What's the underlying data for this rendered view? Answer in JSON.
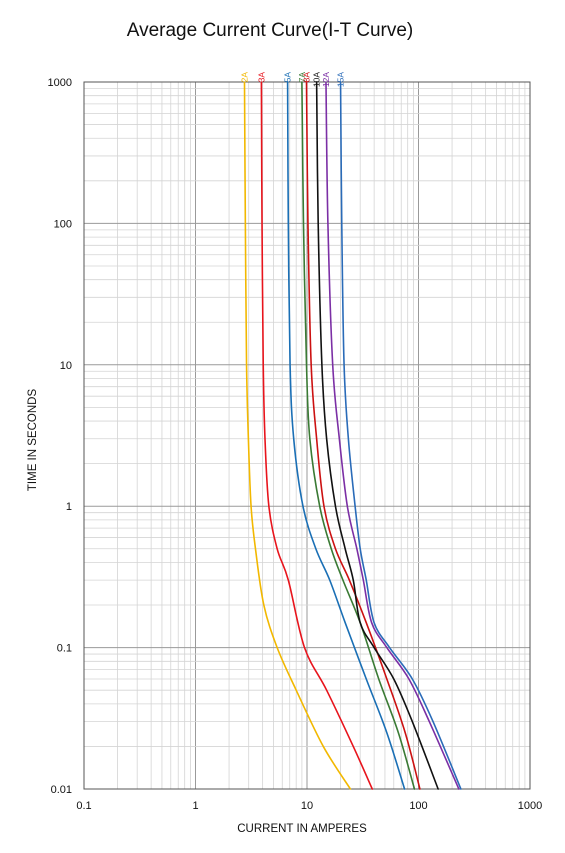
{
  "chart_data": {
    "type": "line",
    "title": "Average Current Curve(I-T Curve)",
    "xlabel": "CURRENT IN AMPERES",
    "ylabel": "TIME IN SECONDS",
    "xscale": "log",
    "yscale": "log",
    "xlim": [
      0.1,
      1000
    ],
    "ylim": [
      0.01,
      1000
    ],
    "grid": true,
    "x_tick_labels": [
      "0.1",
      "1",
      "10",
      "100",
      "1000"
    ],
    "y_tick_labels": [
      "0.01",
      "0.1",
      "1",
      "10",
      "100",
      "1000"
    ],
    "legend_placement": "top, labels above each curve",
    "series": [
      {
        "name": "2A",
        "color": "#f2b800",
        "x": [
          2.75,
          2.8,
          2.87,
          2.98,
          3.15,
          3.45,
          4.1,
          5.4,
          8.0,
          14.0,
          24.5
        ],
        "y": [
          1000,
          100,
          10,
          3,
          1,
          0.5,
          0.2,
          0.1,
          0.05,
          0.02,
          0.01
        ]
      },
      {
        "name": "3A",
        "color": "#e8141c",
        "x": [
          3.9,
          3.95,
          4.05,
          4.2,
          4.55,
          5.4,
          6.8,
          9.5,
          15.0,
          26.0,
          38.5
        ],
        "y": [
          1000,
          100,
          10,
          3,
          1,
          0.5,
          0.3,
          0.1,
          0.05,
          0.02,
          0.01
        ]
      },
      {
        "name": "5A",
        "color": "#1a6fb5",
        "x": [
          6.7,
          6.8,
          7.05,
          7.6,
          9.2,
          12.0,
          16.0,
          22.0,
          34.0,
          52.0,
          75.0
        ],
        "y": [
          1000,
          100,
          10,
          3,
          1,
          0.5,
          0.3,
          0.15,
          0.06,
          0.025,
          0.01
        ]
      },
      {
        "name": "7A",
        "color": "#3a7a34",
        "x": [
          9.0,
          9.3,
          9.9,
          10.6,
          13.0,
          16.5,
          21.0,
          30.0,
          44.0,
          66.0,
          92.0
        ],
        "y": [
          1000,
          100,
          10,
          3,
          1,
          0.5,
          0.3,
          0.15,
          0.06,
          0.025,
          0.01
        ]
      },
      {
        "name": "8A",
        "color": "#cc1111",
        "x": [
          9.9,
          10.2,
          10.9,
          12.2,
          14.2,
          18.0,
          24.0,
          34.0,
          52.0,
          76.0,
          103.0
        ],
        "y": [
          1000,
          100,
          10,
          3,
          1,
          0.5,
          0.3,
          0.15,
          0.06,
          0.025,
          0.01
        ]
      },
      {
        "name": "10A",
        "color": "#111111",
        "x": [
          12.2,
          12.6,
          13.6,
          15.0,
          18.0,
          22.0,
          26.0,
          30.0,
          40.0,
          60.0,
          88.0,
          150.0
        ],
        "y": [
          1000,
          100,
          10,
          3,
          1,
          0.5,
          0.3,
          0.15,
          0.1,
          0.06,
          0.03,
          0.01
        ]
      },
      {
        "name": "12A",
        "color": "#7b2fa5",
        "x": [
          14.8,
          15.4,
          17.0,
          19.5,
          23.0,
          28.0,
          32.0,
          38.0,
          52.0,
          82.0,
          125.0,
          230.0
        ],
        "y": [
          1000,
          100,
          10,
          3,
          1,
          0.5,
          0.3,
          0.15,
          0.1,
          0.06,
          0.03,
          0.01
        ]
      },
      {
        "name": "15A",
        "color": "#2a6bb8",
        "x": [
          20.0,
          20.5,
          21.5,
          23.5,
          27.0,
          30.0,
          34.0,
          40.0,
          55.0,
          88.0,
          135.0,
          240.0
        ],
        "y": [
          1000,
          100,
          10,
          3,
          1,
          0.5,
          0.3,
          0.15,
          0.1,
          0.06,
          0.03,
          0.01
        ]
      }
    ]
  }
}
